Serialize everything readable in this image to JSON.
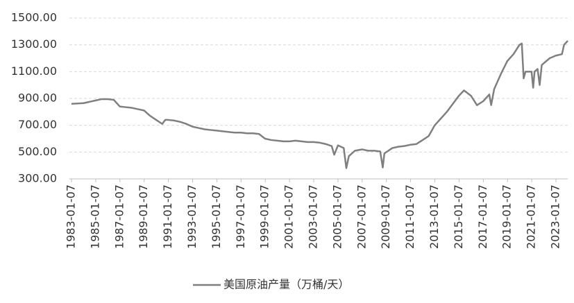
{
  "chart_data": {
    "type": "line",
    "x": [
      "1983-01-07",
      "1984-01-06",
      "1984-07-06",
      "1985-01-04",
      "1985-07-05",
      "1986-01-03",
      "1986-07-04",
      "1987-01-02",
      "1987-07-03",
      "1988-01-01",
      "1988-07-01",
      "1989-01-06",
      "1989-07-07",
      "1990-01-05",
      "1990-07-06",
      "1990-10-05",
      "1991-01-04",
      "1991-07-05",
      "1992-01-03",
      "1992-07-03",
      "1993-01-01",
      "1993-07-02",
      "1994-01-07",
      "1994-07-01",
      "1995-01-06",
      "1995-07-07",
      "1996-01-05",
      "1996-07-05",
      "1997-01-03",
      "1997-07-04",
      "1998-01-02",
      "1998-07-03",
      "1999-01-01",
      "1999-07-02",
      "2000-01-07",
      "2000-07-07",
      "2001-01-05",
      "2001-07-06",
      "2002-01-04",
      "2002-07-05",
      "2003-01-03",
      "2003-07-04",
      "2004-01-02",
      "2004-07-02",
      "2004-09-17",
      "2005-01-07",
      "2005-07-01",
      "2005-09-16",
      "2005-12-02",
      "2006-06-02",
      "2007-01-05",
      "2007-07-06",
      "2008-01-04",
      "2008-07-04",
      "2008-09-19",
      "2008-11-07",
      "2009-07-03",
      "2010-01-01",
      "2010-07-02",
      "2011-01-07",
      "2011-07-01",
      "2012-01-06",
      "2012-07-06",
      "2013-01-04",
      "2013-07-05",
      "2014-01-03",
      "2014-07-04",
      "2015-01-02",
      "2015-06-05",
      "2016-01-01",
      "2016-07-01",
      "2017-01-06",
      "2017-07-07",
      "2017-09-01",
      "2017-12-01",
      "2018-07-06",
      "2019-01-04",
      "2019-07-05",
      "2020-01-03",
      "2020-03-13",
      "2020-05-08",
      "2020-07-03",
      "2021-01-01",
      "2021-02-19",
      "2021-04-02",
      "2021-07-02",
      "2021-09-03",
      "2021-11-05",
      "2022-07-01",
      "2023-01-06",
      "2023-07-07",
      "2023-09-08",
      "2023-12-29"
    ],
    "series": [
      {
        "name": "美国原油产量（万桶/天）",
        "color": "#7f7f7f",
        "values": [
          860,
          865,
          875,
          885,
          895,
          895,
          890,
          840,
          835,
          830,
          820,
          810,
          770,
          740,
          710,
          740,
          740,
          735,
          725,
          710,
          690,
          680,
          670,
          665,
          660,
          655,
          650,
          645,
          645,
          640,
          640,
          635,
          600,
          590,
          585,
          580,
          580,
          585,
          580,
          575,
          575,
          570,
          560,
          545,
          480,
          550,
          530,
          380,
          470,
          510,
          520,
          510,
          510,
          505,
          385,
          490,
          530,
          540,
          545,
          555,
          560,
          590,
          620,
          700,
          750,
          800,
          860,
          920,
          960,
          920,
          850,
          880,
          930,
          850,
          970,
          1090,
          1180,
          1230,
          1300,
          1310,
          1050,
          1100,
          1100,
          980,
          1100,
          1120,
          1000,
          1150,
          1200,
          1220,
          1230,
          1300,
          1330
        ]
      }
    ],
    "xlim": [
      "1983-01-07",
      "2023-12-29"
    ],
    "xticks": [
      "1983-01-07",
      "1985-01-07",
      "1987-01-07",
      "1989-01-07",
      "1991-01-07",
      "1993-01-07",
      "1995-01-07",
      "1997-01-07",
      "1999-01-07",
      "2001-01-07",
      "2003-01-07",
      "2005-01-07",
      "2007-01-07",
      "2009-01-07",
      "2011-01-07",
      "2013-01-07",
      "2015-01-07",
      "2017-01-07",
      "2019-01-07",
      "2021-01-07",
      "2023-01-07"
    ],
    "ylim": [
      300,
      1500
    ],
    "yticks": [
      {
        "value": 300,
        "label": "300.00"
      },
      {
        "value": 500,
        "label": "500.00"
      },
      {
        "value": 700,
        "label": "700.00"
      },
      {
        "value": 900,
        "label": "900.00"
      },
      {
        "value": 1100,
        "label": "1100.00"
      },
      {
        "value": 1300,
        "label": "1300.00"
      },
      {
        "value": 1500,
        "label": "1500.00"
      }
    ],
    "grid": true
  }
}
